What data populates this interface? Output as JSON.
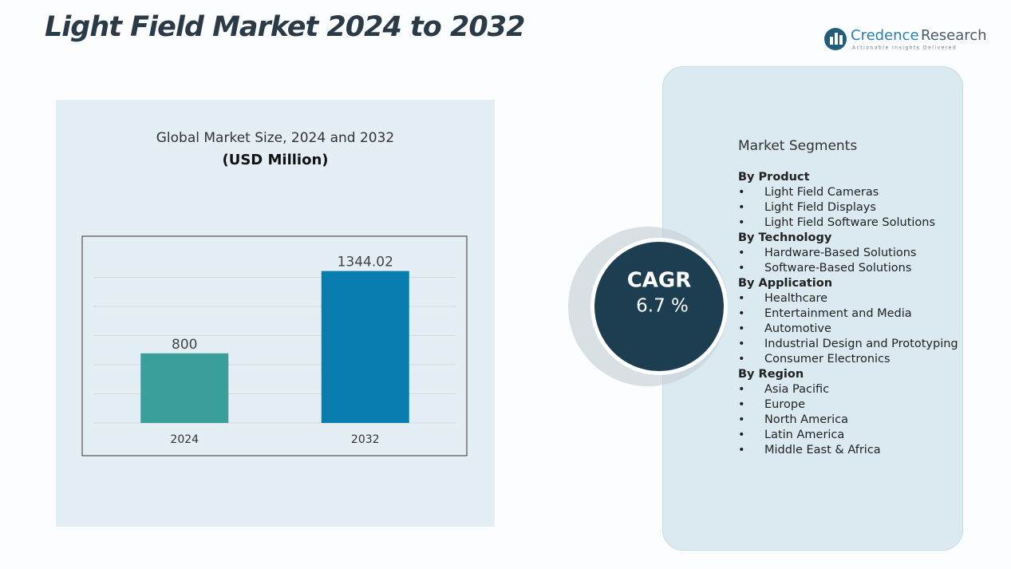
{
  "title": "Light Field Market 2024 to 2032",
  "logo": {
    "name_1": "Credence",
    "name_2": "Research",
    "tagline": "Actionable Insights Delivered"
  },
  "chart_data": {
    "type": "bar",
    "title": "Global Market Size, 2024 and 2032",
    "subtitle": "(USD Million)",
    "categories": [
      "2024",
      "2032"
    ],
    "values": [
      800,
      1344.02
    ],
    "colors": [
      "#3a9e9b",
      "#0a7db0"
    ],
    "ylim": [
      340,
      1400
    ],
    "grid": true
  },
  "cagr": {
    "label": "CAGR",
    "value": "6.7 %"
  },
  "segments": {
    "title": "Market Segments",
    "groups": [
      {
        "heading": "By  Product",
        "items": [
          "Light Field Cameras",
          "Light Field Displays",
          "Light Field Software Solutions"
        ]
      },
      {
        "heading": "By Technology",
        "items": [
          "Hardware-Based Solutions",
          "Software-Based Solutions"
        ]
      },
      {
        "heading": "By Application",
        "items": [
          "Healthcare",
          "Entertainment and Media",
          "Automotive",
          "Industrial Design and Prototyping",
          "Consumer Electronics"
        ]
      },
      {
        "heading": "By Region",
        "items": [
          "Asia Pacific",
          "Europe",
          "North America",
          "Latin America",
          "Middle East & Africa"
        ]
      }
    ]
  }
}
